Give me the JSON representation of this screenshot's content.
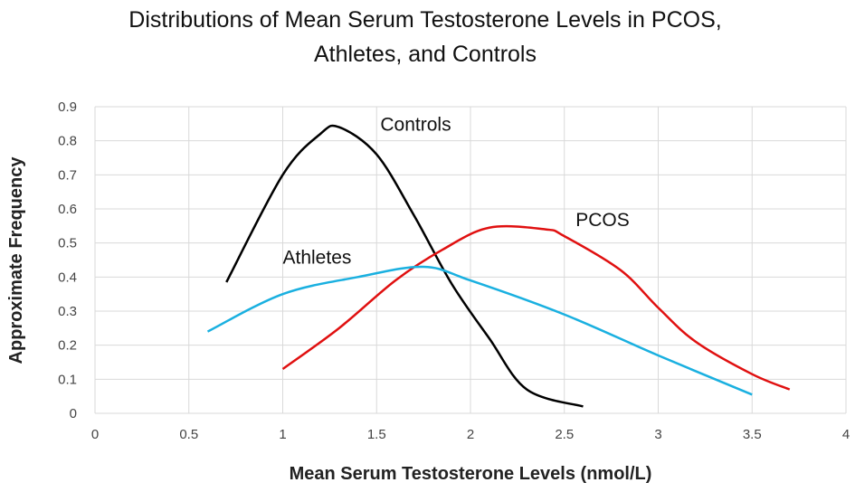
{
  "chart_data": {
    "type": "line",
    "title_lines": [
      "Distributions of Mean Serum Testosterone Levels in PCOS,",
      "Athletes, and Controls"
    ],
    "xlabel": "Mean Serum Testosterone Levels (nmol/L)",
    "ylabel": "Approximate Frequency",
    "xlim": [
      0,
      4
    ],
    "ylim": [
      0,
      0.9
    ],
    "xticks": [
      "0",
      "0.5",
      "1",
      "1.5",
      "2",
      "2.5",
      "3",
      "3.5",
      "4"
    ],
    "yticks": [
      "0",
      "0.1",
      "0.2",
      "0.3",
      "0.4",
      "0.5",
      "0.6",
      "0.7",
      "0.8",
      "0.9"
    ],
    "grid": true,
    "smooth": true,
    "series": [
      {
        "name": "Controls",
        "color": "#000000",
        "label_at": [
          1.52,
          0.83
        ],
        "x": [
          0.7,
          1.0,
          1.2,
          1.3,
          1.5,
          1.7,
          1.9,
          2.1,
          2.3,
          2.6
        ],
        "y": [
          0.385,
          0.7,
          0.82,
          0.84,
          0.76,
          0.58,
          0.38,
          0.22,
          0.07,
          0.02
        ]
      },
      {
        "name": "PCOS",
        "color": "#e01010",
        "label_at": [
          2.56,
          0.55
        ],
        "x": [
          1.0,
          1.3,
          1.6,
          1.85,
          2.1,
          2.4,
          2.5,
          2.8,
          3.0,
          3.2,
          3.5,
          3.7
        ],
        "y": [
          0.13,
          0.25,
          0.39,
          0.48,
          0.545,
          0.54,
          0.52,
          0.42,
          0.31,
          0.21,
          0.115,
          0.07
        ]
      },
      {
        "name": "Athletes",
        "color": "#1ab0e0",
        "label_at": [
          1.0,
          0.44
        ],
        "x": [
          0.6,
          1.0,
          1.4,
          1.75,
          2.0,
          2.5,
          3.0,
          3.5
        ],
        "y": [
          0.24,
          0.35,
          0.4,
          0.43,
          0.39,
          0.29,
          0.17,
          0.055
        ]
      }
    ]
  }
}
